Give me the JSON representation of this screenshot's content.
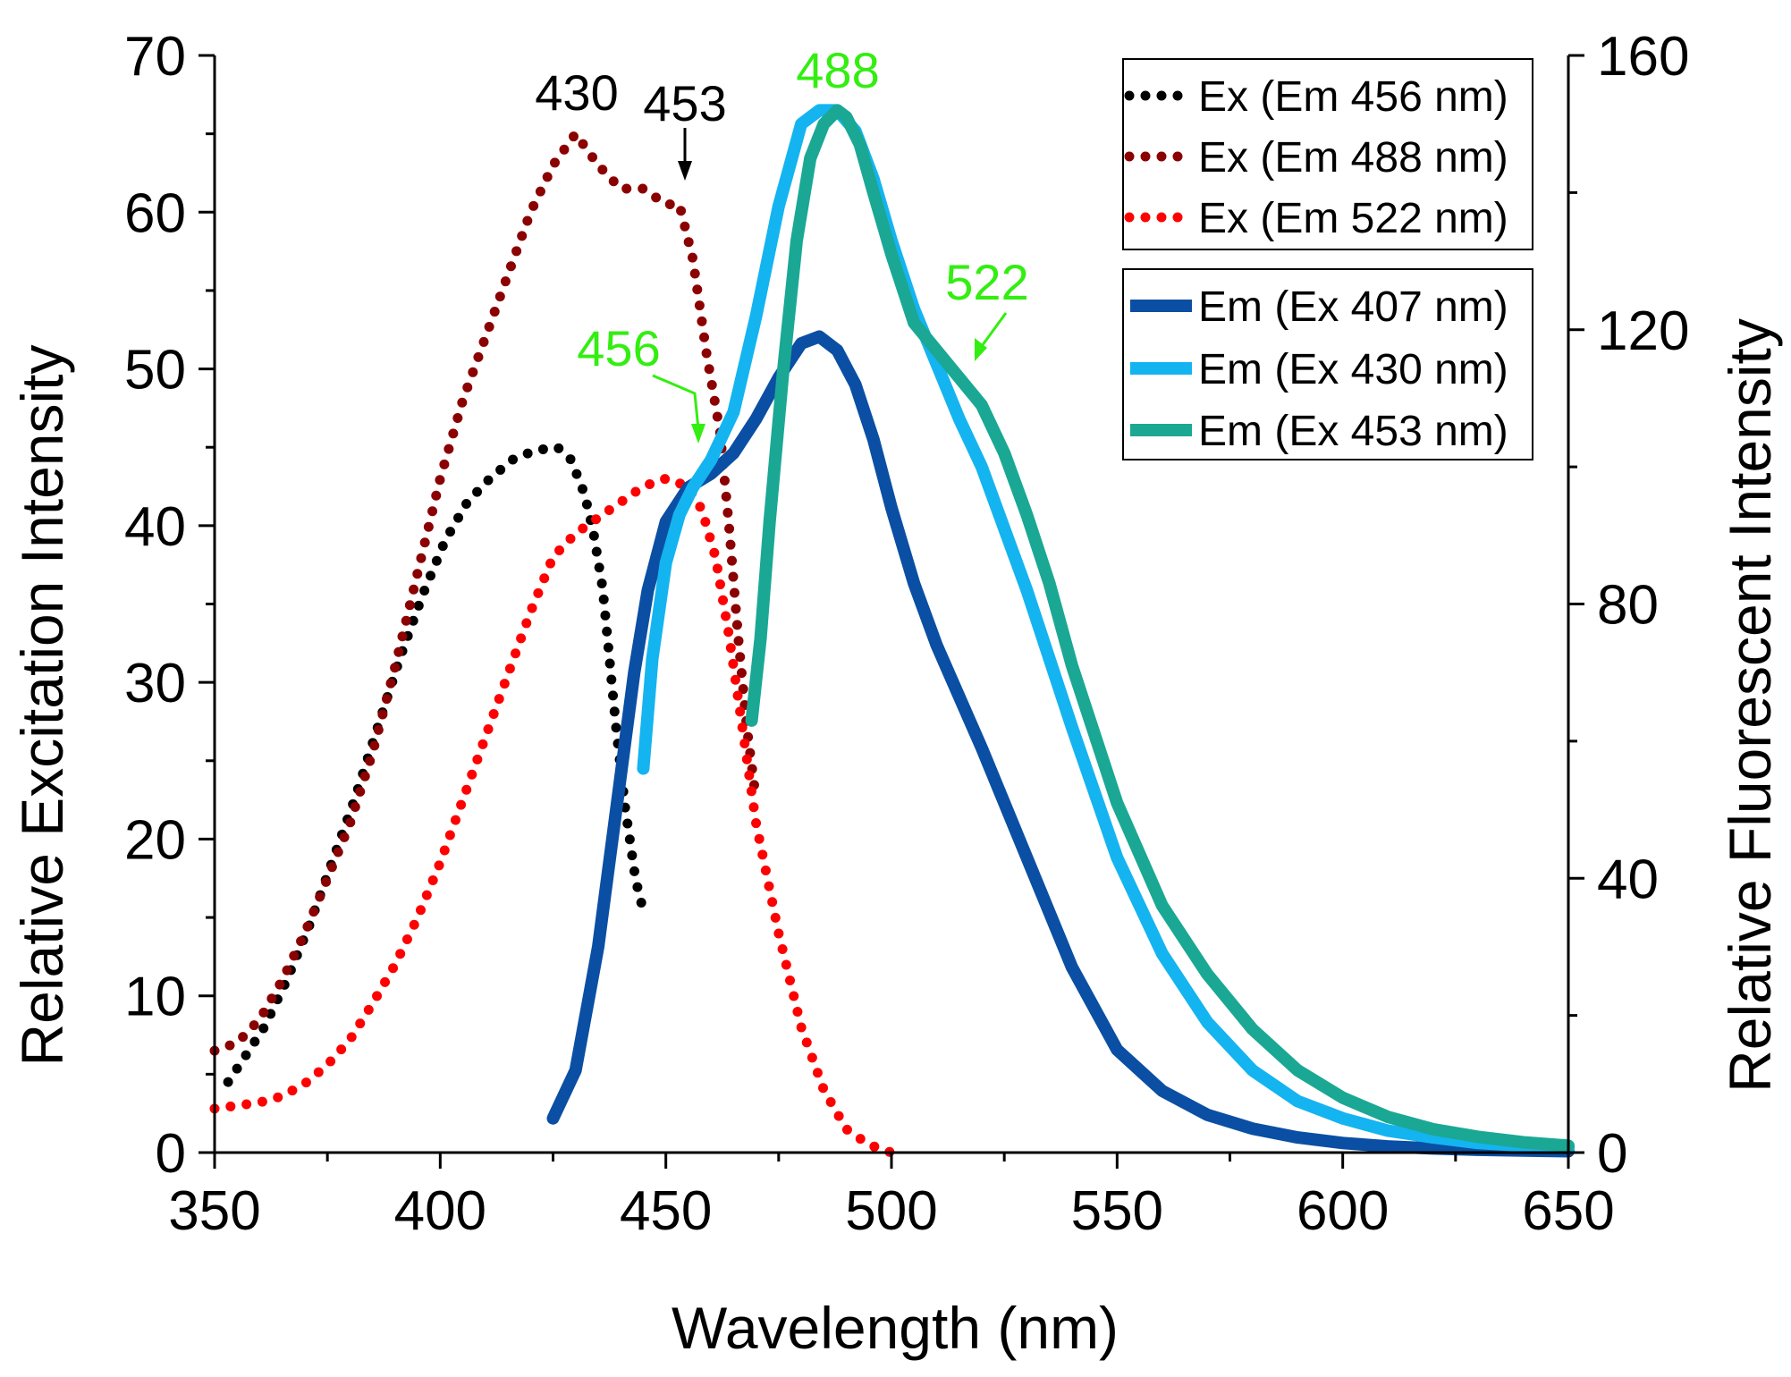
{
  "chart_data": {
    "type": "line",
    "title": "",
    "xlabel": "Wavelength (nm)",
    "ylabel_left": "Relative Excitation Intensity",
    "ylabel_right": "Relative Fluorescent Intensity",
    "xlim": [
      350,
      650
    ],
    "ylim_left": [
      0,
      70
    ],
    "ylim_right": [
      0,
      160
    ],
    "xticks": [
      "350",
      "400",
      "450",
      "500",
      "550",
      "600",
      "650"
    ],
    "yticks_left": [
      "0",
      "10",
      "20",
      "30",
      "40",
      "50",
      "60",
      "70"
    ],
    "yticks_right": [
      "0",
      "40",
      "80",
      "120",
      "160"
    ],
    "grid": false,
    "legend_position": "top-right",
    "series": [
      {
        "name": "Ex (Em 456 nm)",
        "axis": "left",
        "style": "dotted",
        "color": "#000000",
        "x": [
          353,
          356,
          361,
          366,
          371,
          376,
          381,
          386,
          391,
          396,
          401,
          406,
          411,
          416,
          421,
          426,
          429,
          432,
          434,
          436,
          437,
          438,
          439,
          440,
          441,
          442,
          443,
          444,
          445
        ],
        "y": [
          4.5,
          5.8,
          8.0,
          11.0,
          14.5,
          18.5,
          22.5,
          27.0,
          31.5,
          35.5,
          39.0,
          41.5,
          43.0,
          44.2,
          44.8,
          45.0,
          44.2,
          42.0,
          39.5,
          36.0,
          33.0,
          30.0,
          27.0,
          24.5,
          22.0,
          20.0,
          18.0,
          16.5,
          15.5
        ]
      },
      {
        "name": "Ex (Em 488 nm)",
        "axis": "left",
        "style": "dotted",
        "color": "#8b0000",
        "x": [
          350,
          355,
          360,
          365,
          370,
          375,
          380,
          385,
          390,
          395,
          400,
          405,
          410,
          415,
          420,
          425,
          430,
          435,
          440,
          445,
          450,
          453,
          456,
          459,
          462,
          464,
          466,
          468,
          470
        ],
        "y": [
          6.5,
          7.0,
          8.5,
          11.0,
          14.0,
          17.5,
          21.0,
          25.5,
          31.0,
          37.0,
          43.0,
          48.0,
          52.0,
          56.0,
          60.0,
          63.0,
          65.0,
          63.0,
          61.5,
          61.5,
          60.5,
          60.5,
          57.0,
          51.0,
          46.0,
          40.0,
          33.0,
          27.0,
          22.5
        ]
      },
      {
        "name": "Ex (Em 522 nm)",
        "axis": "left",
        "style": "dotted",
        "color": "#ff0000",
        "x": [
          350,
          355,
          360,
          365,
          370,
          375,
          380,
          385,
          390,
          395,
          400,
          405,
          410,
          415,
          420,
          425,
          430,
          435,
          440,
          445,
          450,
          455,
          458,
          461,
          464,
          467,
          470,
          475,
          480,
          485,
          490,
          495,
          500
        ],
        "y": [
          2.8,
          3.0,
          3.2,
          3.6,
          4.4,
          5.6,
          7.2,
          9.5,
          12.0,
          15.0,
          18.5,
          22.5,
          26.5,
          30.5,
          34.5,
          38.0,
          39.5,
          40.5,
          41.5,
          42.5,
          43.0,
          42.5,
          41.0,
          38.0,
          33.0,
          27.0,
          21.0,
          14.0,
          8.0,
          4.0,
          1.5,
          0.5,
          0.0
        ]
      },
      {
        "name": "Em (Ex 407 nm)",
        "axis": "right",
        "style": "solid",
        "color": "#0a4fa3",
        "x": [
          425,
          430,
          435,
          440,
          443,
          446,
          450,
          455,
          460,
          465,
          470,
          475,
          480,
          484,
          488,
          492,
          496,
          500,
          505,
          510,
          520,
          530,
          540,
          550,
          560,
          570,
          580,
          590,
          600,
          610,
          620,
          630,
          640,
          650
        ],
        "y": [
          5,
          12,
          30,
          55,
          70,
          82,
          92,
          97,
          99,
          102,
          107,
          113,
          118,
          119,
          117,
          112,
          104,
          94,
          83,
          74,
          59,
          43,
          27,
          15,
          9,
          5.5,
          3.5,
          2.2,
          1.4,
          0.9,
          0.6,
          0.4,
          0.3,
          0.2
        ]
      },
      {
        "name": "Em (Ex 430 nm)",
        "axis": "right",
        "style": "solid",
        "color": "#14b4f0",
        "x": [
          445,
          447,
          450,
          453,
          456,
          460,
          465,
          470,
          475,
          480,
          484,
          488,
          492,
          496,
          500,
          505,
          510,
          515,
          520,
          530,
          540,
          550,
          560,
          570,
          580,
          590,
          600,
          610,
          620,
          630,
          640,
          650
        ],
        "y": [
          56,
          72,
          86,
          93,
          97,
          101,
          108,
          122,
          138,
          150,
          152,
          152,
          149,
          142,
          133,
          123,
          115,
          107,
          100,
          82,
          62,
          43,
          29,
          19,
          12,
          7.5,
          5,
          3.2,
          2.2,
          1.4,
          1.0,
          0.7
        ]
      },
      {
        "name": "Em (Ex 453 nm)",
        "axis": "right",
        "style": "solid",
        "color": "#1aa894",
        "x": [
          469,
          471,
          473,
          476,
          479,
          482,
          485,
          488,
          490,
          493,
          496,
          500,
          505,
          510,
          515,
          520,
          525,
          530,
          535,
          540,
          550,
          560,
          570,
          580,
          590,
          600,
          610,
          620,
          630,
          640,
          650
        ],
        "y": [
          63,
          75,
          92,
          114,
          133,
          145,
          150,
          152,
          151,
          147,
          140,
          131,
          121,
          117,
          113,
          109,
          102,
          93,
          83,
          71,
          51,
          36,
          26,
          18,
          12,
          8,
          5.2,
          3.4,
          2.3,
          1.5,
          1.0
        ]
      }
    ],
    "annotations": [
      {
        "text": "430",
        "color": "#000000",
        "arrow": false
      },
      {
        "text": "453",
        "color": "#000000",
        "arrow": true
      },
      {
        "text": "488",
        "color": "#33ee11",
        "arrow": false
      },
      {
        "text": "456",
        "color": "#33ee11",
        "arrow": true
      },
      {
        "text": "522",
        "color": "#33ee11",
        "arrow": true
      }
    ]
  }
}
